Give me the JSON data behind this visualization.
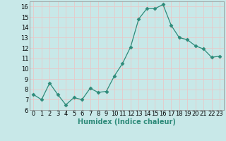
{
  "x": [
    0,
    1,
    2,
    3,
    4,
    5,
    6,
    7,
    8,
    9,
    10,
    11,
    12,
    13,
    14,
    15,
    16,
    17,
    18,
    19,
    20,
    21,
    22,
    23
  ],
  "y": [
    7.5,
    7.0,
    8.6,
    7.5,
    6.5,
    7.2,
    7.0,
    8.1,
    7.7,
    7.8,
    9.3,
    10.5,
    12.1,
    14.8,
    15.8,
    15.8,
    16.2,
    14.2,
    13.0,
    12.8,
    12.2,
    11.9,
    11.1,
    11.2
  ],
  "line_color": "#2e8b7a",
  "marker": "D",
  "marker_size": 2.5,
  "bg_color": "#c8e8e8",
  "grid_color": "#e8c8c8",
  "xlabel": "Humidex (Indice chaleur)",
  "ylim": [
    6,
    16.5
  ],
  "xlim": [
    -0.5,
    23.5
  ],
  "yticks": [
    6,
    7,
    8,
    9,
    10,
    11,
    12,
    13,
    14,
    15,
    16
  ],
  "xticks": [
    0,
    1,
    2,
    3,
    4,
    5,
    6,
    7,
    8,
    9,
    10,
    11,
    12,
    13,
    14,
    15,
    16,
    17,
    18,
    19,
    20,
    21,
    22,
    23
  ],
  "tick_fontsize": 6,
  "xlabel_fontsize": 7
}
